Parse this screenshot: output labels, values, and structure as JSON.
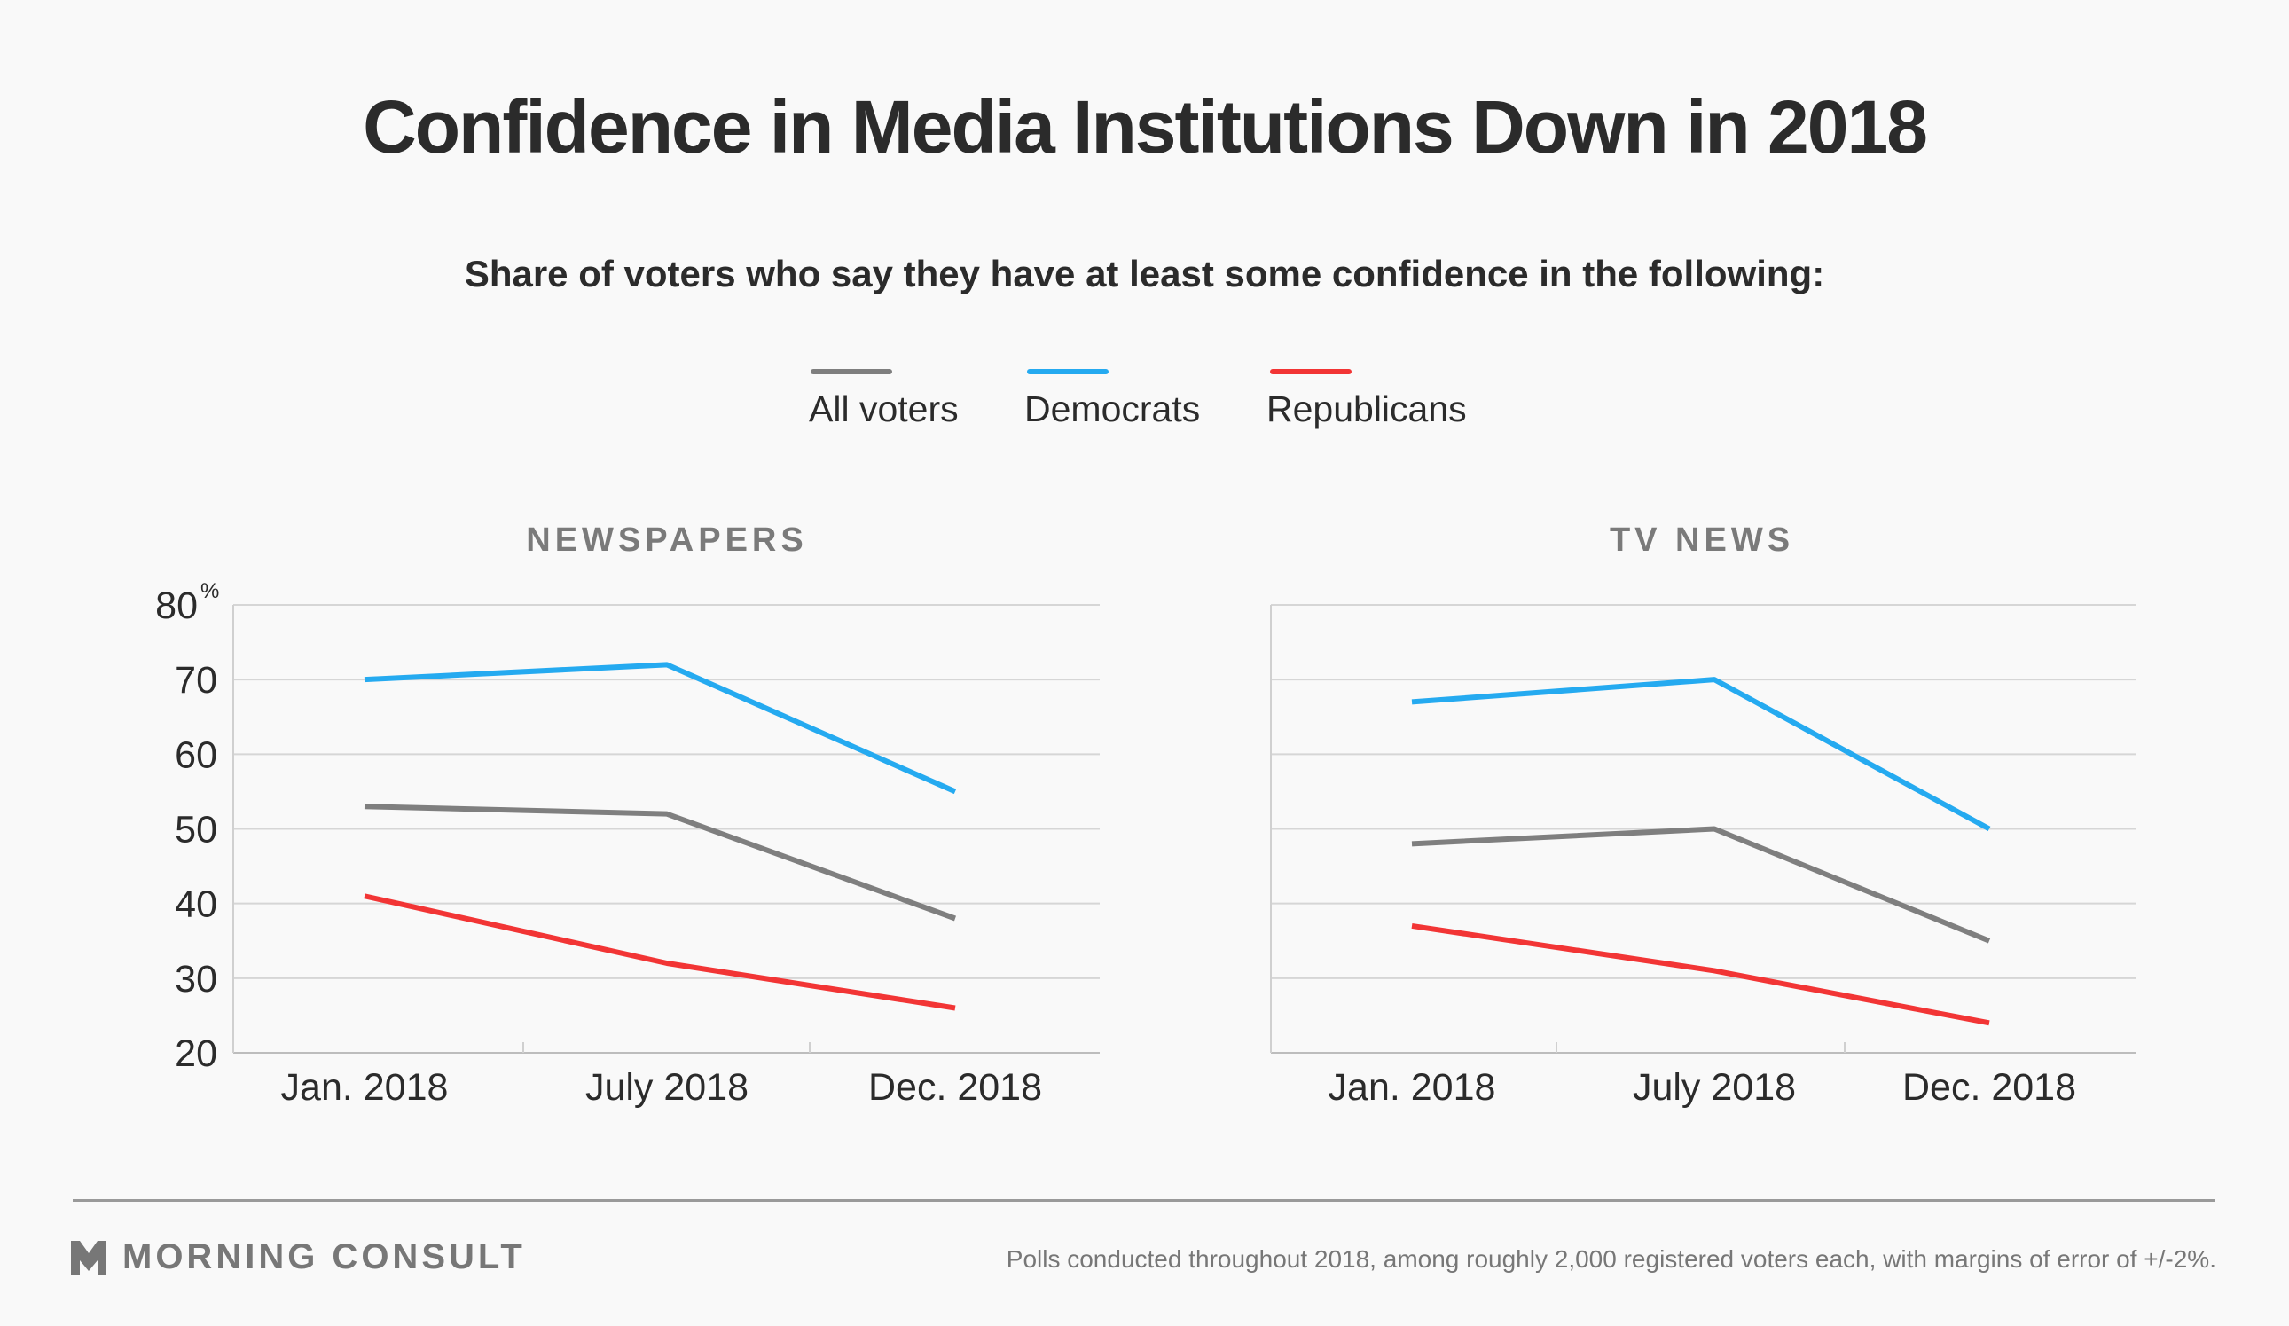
{
  "title": "Confidence in Media Institutions Down in 2018",
  "subtitle": "Share of voters who say they have at least some confidence in the following:",
  "legend": [
    {
      "label": "All voters",
      "color": "#7f7f7f"
    },
    {
      "label": "Democrats",
      "color": "#25aaf0"
    },
    {
      "label": "Republicans",
      "color": "#f23535"
    }
  ],
  "footer": {
    "brand": "MORNING CONSULT",
    "note": "Polls conducted throughout 2018, among roughly 2,000 registered voters each, with margins of error of +/-2%."
  },
  "chart_data": [
    {
      "type": "line",
      "title": "NEWSPAPERS",
      "x": [
        "Jan. 2018",
        "July 2018",
        "Dec. 2018"
      ],
      "ylim": [
        20,
        80
      ],
      "yticks": [
        20,
        30,
        40,
        50,
        60,
        70,
        80
      ],
      "ytick_suffix_top": "%",
      "grid": true,
      "series": [
        {
          "name": "All voters",
          "color": "#7f7f7f",
          "values": [
            53,
            52,
            38
          ]
        },
        {
          "name": "Democrats",
          "color": "#25aaf0",
          "values": [
            70,
            72,
            55
          ]
        },
        {
          "name": "Republicans",
          "color": "#f23535",
          "values": [
            41,
            32,
            26
          ]
        }
      ]
    },
    {
      "type": "line",
      "title": "TV NEWS",
      "x": [
        "Jan. 2018",
        "July 2018",
        "Dec. 2018"
      ],
      "ylim": [
        20,
        80
      ],
      "yticks": [
        20,
        30,
        40,
        50,
        60,
        70,
        80
      ],
      "grid": true,
      "series": [
        {
          "name": "All voters",
          "color": "#7f7f7f",
          "values": [
            48,
            50,
            35
          ]
        },
        {
          "name": "Democrats",
          "color": "#25aaf0",
          "values": [
            67,
            70,
            50
          ]
        },
        {
          "name": "Republicans",
          "color": "#f23535",
          "values": [
            37,
            31,
            24
          ]
        }
      ]
    }
  ]
}
